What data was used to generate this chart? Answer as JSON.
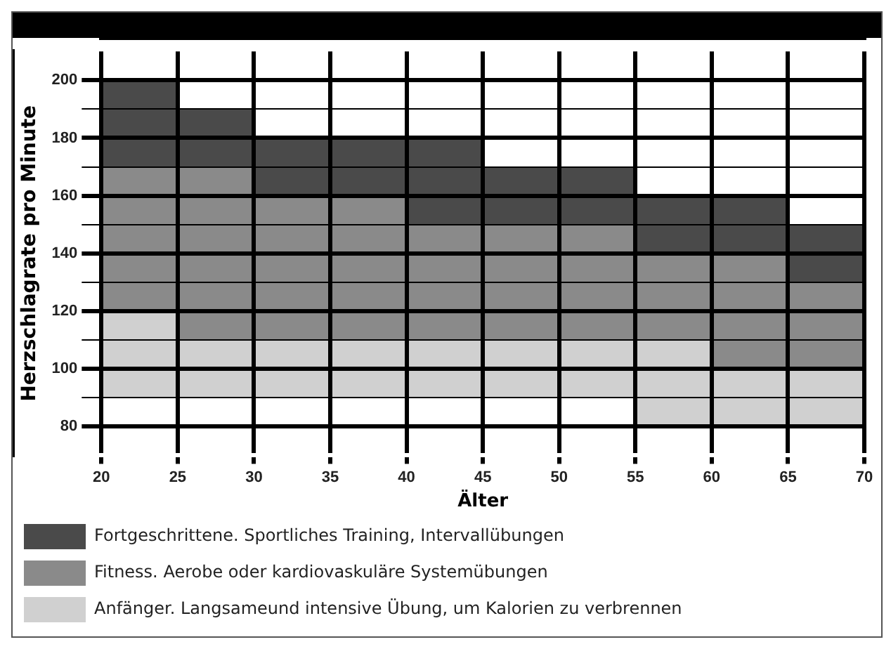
{
  "chart_data": {
    "type": "bar",
    "xlabel": "Älter",
    "ylabel": "Herzschlagrate pro Minute",
    "x": [
      22.5,
      27.5,
      32.5,
      37.5,
      42.5,
      47.5,
      52.5,
      57.5,
      62.5,
      67.5
    ],
    "series": [
      {
        "name": "Anfänger. Langsameund intensive Übung, um Kalorien zu verbrennen",
        "color": "#d0d0d0",
        "base": [
          90,
          90,
          90,
          90,
          90,
          90,
          90,
          80,
          80,
          80
        ],
        "values": [
          30,
          20,
          20,
          20,
          20,
          20,
          20,
          30,
          20,
          20
        ]
      },
      {
        "name": "Fitness. Aerobe oder kardiovaskuläre Systemübungen",
        "color": "#8a8a8a",
        "base": [
          120,
          110,
          110,
          110,
          110,
          110,
          110,
          110,
          100,
          100
        ],
        "values": [
          50,
          60,
          50,
          50,
          40,
          40,
          40,
          30,
          40,
          30
        ]
      },
      {
        "name": "Fortgeschrittene. Sportliches Training, Intervallübungen",
        "color": "#4a4a4a",
        "base": [
          170,
          170,
          160,
          160,
          150,
          150,
          150,
          140,
          140,
          130
        ],
        "values": [
          30,
          20,
          20,
          20,
          30,
          20,
          20,
          20,
          20,
          20
        ]
      }
    ],
    "xlim": [
      20,
      70
    ],
    "xticks": [
      20,
      25,
      30,
      35,
      40,
      45,
      50,
      55,
      60,
      65,
      70
    ],
    "ylim": [
      70,
      210
    ],
    "yticks": [
      80,
      {
        "value": 90,
        "label": null
      },
      100,
      {
        "value": 110,
        "label": null
      },
      120,
      {
        "value": 130,
        "label": null
      },
      140,
      {
        "value": 150,
        "label": null
      },
      160,
      {
        "value": 170,
        "label": null
      },
      180,
      {
        "value": 190,
        "label": null
      },
      200
    ],
    "grid": true,
    "legend": "bottom"
  }
}
